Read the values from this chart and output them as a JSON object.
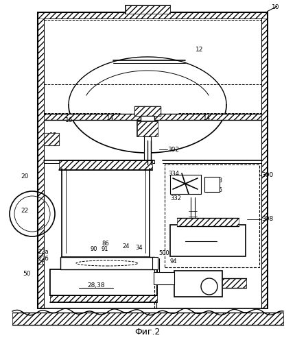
{
  "fig_label": "Фиг.2",
  "bg_color": "#ffffff"
}
